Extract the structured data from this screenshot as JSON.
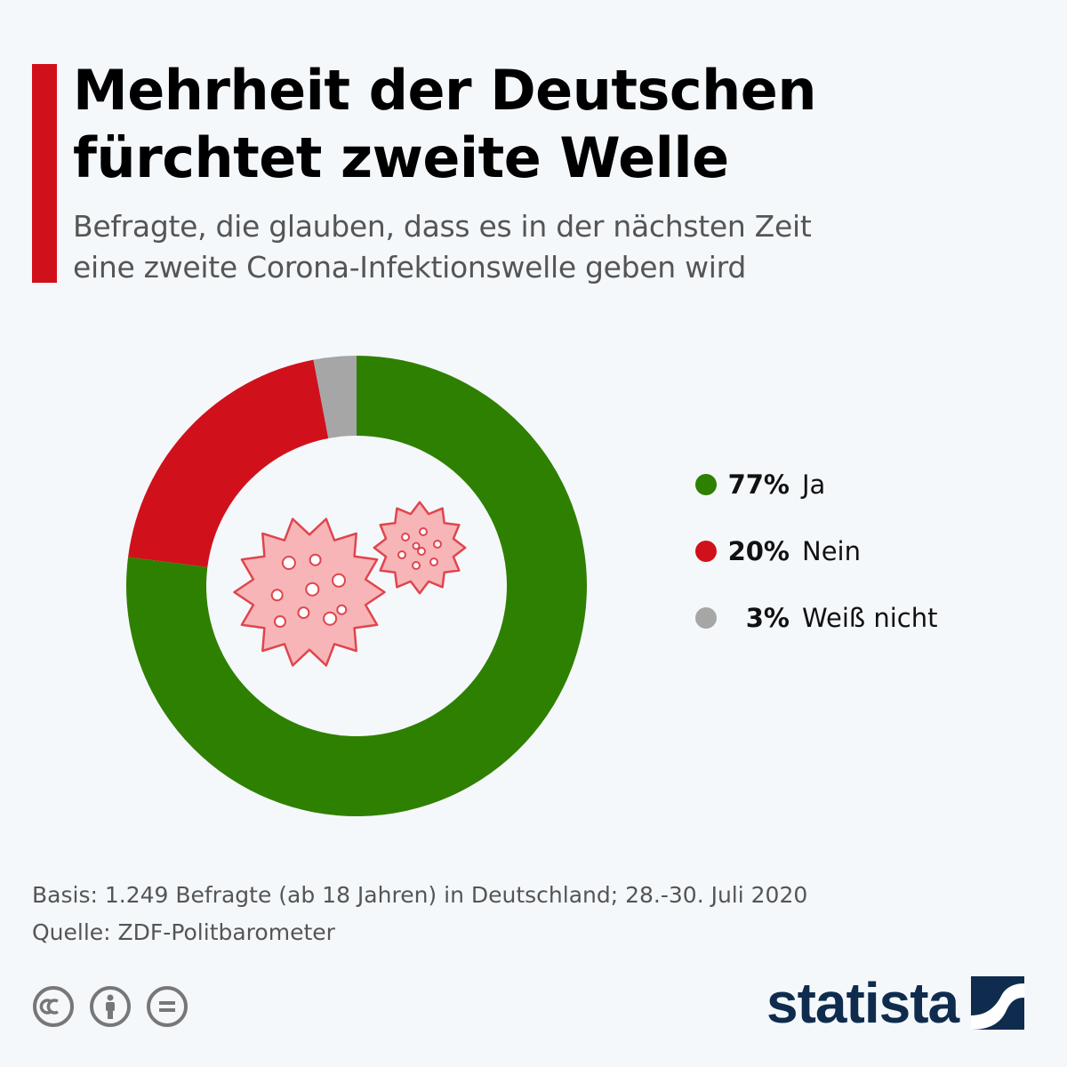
{
  "header": {
    "title_lines": [
      "Mehrheit der Deutschen",
      "fürchtet zweite Welle"
    ],
    "subtitle_lines": [
      "Befragte, die glauben, dass es in der nächsten Zeit",
      "eine zweite Corona-Infektionswelle geben wird"
    ]
  },
  "chart_data": {
    "type": "pie",
    "donut": true,
    "title": "Mehrheit der Deutschen fürchtet zweite Welle",
    "subtitle": "Befragte, die glauben, dass es in der nächsten Zeit eine zweite Corona-Infektionswelle geben wird",
    "legend_position": "right",
    "slices": [
      {
        "label": "Ja",
        "value": 77,
        "display": "77%",
        "color": "#2e8000"
      },
      {
        "label": "Nein",
        "value": 20,
        "display": "20%",
        "color": "#d0111b"
      },
      {
        "label": "Weiß nicht",
        "value": 3,
        "display": "3%",
        "color": "#a6a6a6"
      }
    ]
  },
  "footer": {
    "basis": "Basis: 1.249 Befragte (ab 18 Jahren) in Deutschland; 28.-30. Juli 2020",
    "source": "Quelle: ZDF-Politbarometer"
  },
  "branding": {
    "name": "statista",
    "color": "#0f2c4e"
  },
  "license_icons": [
    "cc-icon",
    "attribution-icon",
    "no-derivatives-icon"
  ]
}
